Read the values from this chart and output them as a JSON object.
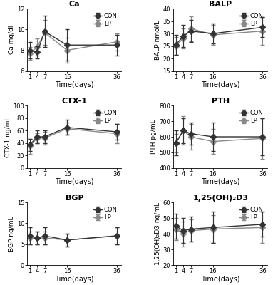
{
  "time_points": [
    1,
    4,
    7,
    16,
    36
  ],
  "Ca": {
    "title": "Ca",
    "ylabel": "Ca mg/dl",
    "ylim": [
      6,
      12
    ],
    "yticks": [
      6,
      8,
      10,
      12
    ],
    "CON": [
      8.0,
      7.8,
      9.8,
      8.5,
      8.5
    ],
    "LP": [
      7.7,
      8.3,
      9.7,
      8.0,
      8.8
    ],
    "CON_err": [
      0.8,
      0.6,
      1.5,
      1.5,
      1.0
    ],
    "LP_err": [
      0.6,
      0.8,
      1.2,
      1.2,
      0.8
    ]
  },
  "BALP": {
    "title": "BALP",
    "ylabel": "BALP nmol/L",
    "ylim": [
      15,
      40
    ],
    "yticks": [
      15,
      20,
      25,
      30,
      35,
      40
    ],
    "CON": [
      25.5,
      29.0,
      31.0,
      30.0,
      32.5
    ],
    "LP": [
      25.0,
      28.0,
      32.0,
      29.5,
      31.0
    ],
    "CON_err": [
      4.0,
      4.5,
      4.5,
      4.0,
      4.0
    ],
    "LP_err": [
      3.5,
      4.0,
      5.0,
      4.0,
      5.5
    ]
  },
  "CTX1": {
    "title": "CTX-1",
    "ylabel": "CTX-1 ng/mL",
    "ylim": [
      0,
      100
    ],
    "yticks": [
      0,
      20,
      40,
      60,
      80,
      100
    ],
    "CON": [
      37,
      50,
      50,
      65,
      58
    ],
    "LP": [
      35,
      48,
      48,
      63,
      55
    ],
    "CON_err": [
      10,
      10,
      10,
      12,
      12
    ],
    "LP_err": [
      12,
      8,
      10,
      10,
      15
    ]
  },
  "PTH": {
    "title": "PTH",
    "ylabel": "PTH pg/mL",
    "ylim": [
      400,
      800
    ],
    "yticks": [
      400,
      500,
      600,
      700,
      800
    ],
    "CON": [
      560,
      640,
      620,
      600,
      600
    ],
    "LP": [
      560,
      640,
      600,
      570,
      590
    ],
    "CON_err": [
      80,
      80,
      70,
      90,
      120
    ],
    "LP_err": [
      60,
      90,
      80,
      80,
      130
    ]
  },
  "BGP": {
    "title": "BGP",
    "ylabel": "BGP ng/mL",
    "ylim": [
      0,
      15
    ],
    "yticks": [
      0,
      5,
      10,
      15
    ],
    "CON": [
      7.0,
      6.5,
      7.0,
      6.0,
      7.0
    ],
    "LP": [
      6.5,
      6.5,
      6.5,
      6.0,
      7.0
    ],
    "CON_err": [
      2.0,
      1.5,
      2.0,
      1.5,
      2.0
    ],
    "LP_err": [
      1.5,
      1.5,
      1.5,
      1.5,
      2.0
    ]
  },
  "VitD": {
    "title": "1,25(OH)₂D3",
    "ylabel": "1,25(OH)₂D3 ng/mL",
    "ylim": [
      20,
      60
    ],
    "yticks": [
      20,
      30,
      40,
      50,
      60
    ],
    "CON": [
      45,
      42,
      43,
      44,
      46
    ],
    "LP": [
      43,
      40,
      42,
      43,
      44
    ],
    "CON_err": [
      8,
      8,
      8,
      10,
      8
    ],
    "LP_err": [
      7,
      8,
      7,
      9,
      10
    ]
  },
  "line_color_CON": "#333333",
  "line_color_LP": "#888888",
  "marker_CON": "D",
  "marker_LP": "D",
  "markersize": 4,
  "linewidth": 1.0,
  "capsize": 2,
  "elinewidth": 0.8,
  "tick_fontsize": 6,
  "label_fontsize": 7,
  "title_fontsize": 8,
  "legend_fontsize": 6
}
